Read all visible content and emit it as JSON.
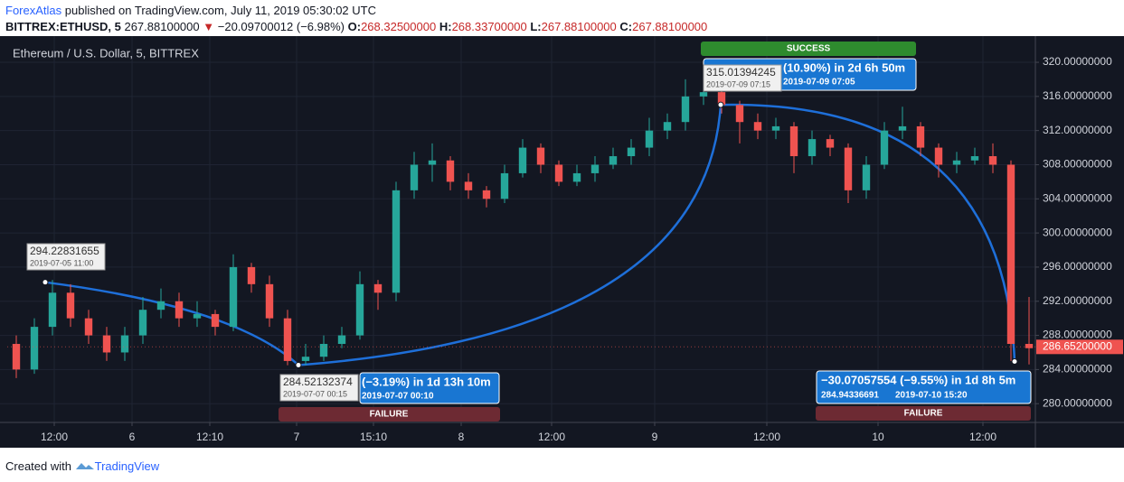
{
  "header": {
    "publisher": "ForexAtlas",
    "published": " published on TradingView.com, July 11, 2019 05:30:02 UTC",
    "symbol": "BITTREX:ETHUSD, 5",
    "last": "267.88100000",
    "arrow": "▼",
    "change": "−20.09700012 (−6.98%)",
    "ohlc": [
      {
        "label": "O:",
        "value": "268.32500000"
      },
      {
        "label": "H:",
        "value": "268.33700000"
      },
      {
        "label": "L:",
        "value": "267.88100000"
      },
      {
        "label": "C:",
        "value": "267.88100000"
      }
    ]
  },
  "chart_data": {
    "type": "candlestick",
    "title": "Ethereum / U.S. Dollar, 5, BITTREX",
    "up_color": "#26a69a",
    "down_color": "#ef5350",
    "grid": true,
    "xlim": [
      0,
      113.7
    ],
    "ylim": [
      277.8,
      323.07
    ],
    "xticks": [
      {
        "value": 5.2,
        "label": "12:00"
      },
      {
        "value": 13.8,
        "label": "6"
      },
      {
        "value": 22.4,
        "label": "12:10"
      },
      {
        "value": 32,
        "label": "7"
      },
      {
        "value": 40.5,
        "label": "15:10"
      },
      {
        "value": 50.2,
        "label": "8"
      },
      {
        "value": 60.2,
        "label": "12:00"
      },
      {
        "value": 71.6,
        "label": "9"
      },
      {
        "value": 84,
        "label": "12:00"
      },
      {
        "value": 96.3,
        "label": "10"
      },
      {
        "value": 107.9,
        "label": "12:00"
      }
    ],
    "yticks": [
      {
        "value": 280,
        "label": "280.00000000"
      },
      {
        "value": 284,
        "label": "284.00000000"
      },
      {
        "value": 288,
        "label": "288.00000000"
      },
      {
        "value": 292,
        "label": "292.00000000"
      },
      {
        "value": 296,
        "label": "296.00000000"
      },
      {
        "value": 300,
        "label": "300.00000000"
      },
      {
        "value": 304,
        "label": "304.00000000"
      },
      {
        "value": 308,
        "label": "308.00000000"
      },
      {
        "value": 312,
        "label": "312.00000000"
      },
      {
        "value": 316,
        "label": "316.00000000"
      },
      {
        "value": 320,
        "label": "320.00000000"
      }
    ],
    "x": [
      1,
      3,
      5,
      7,
      9,
      11,
      13,
      15,
      17,
      19,
      21,
      23,
      25,
      27,
      29,
      31,
      33,
      35,
      37,
      39,
      41,
      43,
      45,
      47,
      49,
      51,
      53,
      55,
      57,
      59,
      61,
      63,
      65,
      67,
      69,
      71,
      73,
      75,
      77,
      79,
      81,
      83,
      85,
      87,
      89,
      91,
      93,
      95,
      97,
      99,
      101,
      103,
      105,
      107,
      109,
      111,
      113
    ],
    "open": [
      287,
      284,
      289,
      293,
      290,
      288,
      286,
      288,
      291,
      292,
      290,
      290.5,
      289,
      296,
      294,
      290,
      285,
      285.5,
      287,
      288,
      294,
      293,
      305,
      308,
      308.5,
      306,
      305,
      304,
      307,
      310,
      308,
      306,
      307,
      308,
      309,
      310,
      312,
      313,
      316,
      316.5,
      315,
      313,
      312,
      312.5,
      309,
      311,
      310,
      305,
      308,
      312,
      312.5,
      310,
      308,
      308.5,
      309,
      308,
      287
    ],
    "high": [
      288,
      290,
      294.5,
      294,
      291,
      289,
      289,
      292.5,
      293.5,
      293,
      292,
      291,
      297.5,
      296.5,
      295,
      291,
      287,
      288,
      289,
      295.5,
      294.5,
      306,
      309.5,
      310.5,
      309,
      307,
      305.5,
      308,
      311,
      310.5,
      308.5,
      308,
      309,
      310,
      311,
      313.5,
      314,
      318,
      317.5,
      317,
      315.5,
      314,
      313.5,
      313,
      312,
      311.5,
      310.5,
      309,
      313,
      314.8,
      313,
      310.5,
      309.5,
      310,
      310.5,
      308.5,
      292.5
    ],
    "low": [
      283,
      283.5,
      288,
      289,
      287,
      285,
      285,
      287,
      290,
      289,
      289,
      288,
      288.5,
      293,
      289,
      284.5,
      284.5,
      285,
      286.5,
      287.5,
      291,
      292,
      304,
      306,
      305,
      304,
      303,
      303.5,
      306.5,
      307,
      305.5,
      305.5,
      306,
      307.5,
      308,
      309,
      311,
      312,
      315,
      314,
      310.5,
      311,
      311,
      307,
      308,
      309,
      303.5,
      304,
      307.5,
      311,
      309,
      306.5,
      307,
      308,
      307,
      285,
      284.6
    ],
    "close": [
      284,
      289,
      293,
      290,
      288,
      286,
      288,
      291,
      292,
      290,
      290.5,
      289,
      296,
      294,
      290,
      285,
      285.5,
      287,
      288,
      294,
      293,
      305,
      308,
      308.5,
      306,
      305,
      304,
      307,
      310,
      308,
      306,
      307,
      308,
      309,
      310,
      312,
      313,
      316,
      316.5,
      315,
      313,
      312,
      312.5,
      309,
      311,
      310,
      305,
      308,
      312,
      312.5,
      310,
      308,
      308.5,
      309,
      308,
      287,
      286.5
    ],
    "last_price": {
      "value": 286.652,
      "label": "286.65200000"
    },
    "markers": [
      {
        "x": 4.2,
        "price": 294.22831655,
        "date": "2019-07-05 11:00"
      },
      {
        "x": 32.2,
        "price": 284.52132374,
        "date": "2019-07-07 00:15"
      },
      {
        "x": 78.9,
        "price": 315.01394245,
        "date": "2019-07-09 07:15"
      },
      {
        "x": 111.4,
        "price": 284.94336691
      }
    ],
    "trades": [
      {
        "change": "(−3.19%) in 1d 13h 10m",
        "date": "2019-07-07  00:10",
        "result": "FAILURE"
      },
      {
        "change": "(10.90%) in 2d 6h 50m",
        "date": "2019-07-09  07:05",
        "result": "SUCCESS"
      },
      {
        "change": "−30.07057554 (−9.55%) in 1d 8h 5m",
        "price": "284.94336691",
        "date": "2019-07-10  15:20",
        "result": "FAILURE"
      }
    ]
  },
  "footer": {
    "created": "Created with",
    "brand": "TradingView"
  }
}
